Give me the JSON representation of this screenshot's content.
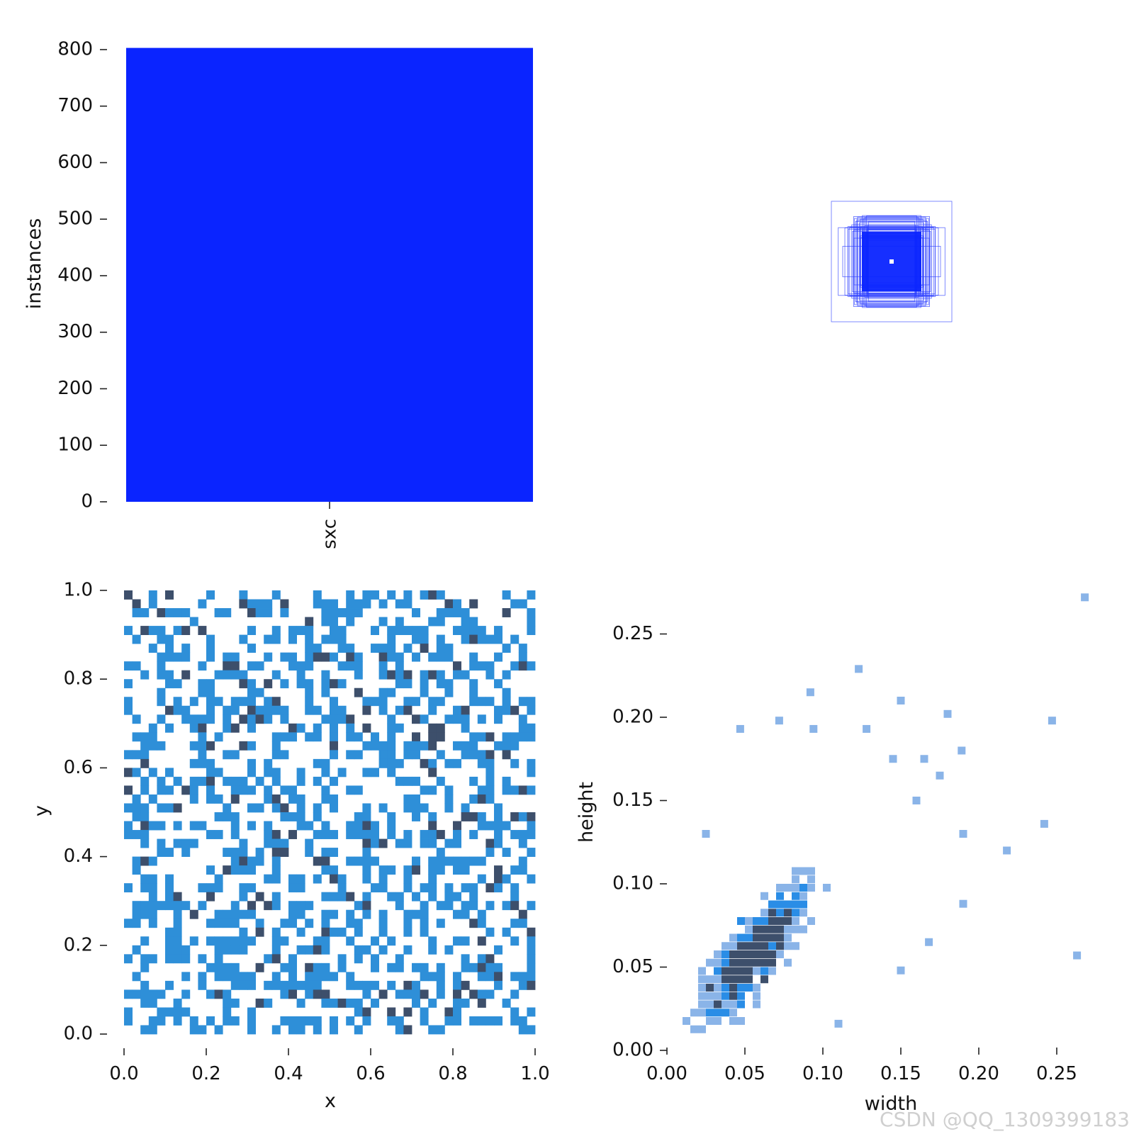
{
  "colors": {
    "bar": "#0a24ff",
    "box_stroke": "#2a3cff",
    "hist_light": "#2e8fd8",
    "hist_dark": "#3d4f6b",
    "wh_light": "#8ab4e8",
    "wh_mid": "#2a8de6",
    "wh_dark": "#3d4f6b"
  },
  "watermark": "CSDN @QQ_1309399183",
  "chart_data": [
    {
      "id": "class-count",
      "type": "bar",
      "categories": [
        "sxc"
      ],
      "values": [
        803
      ],
      "ylabel": "instances",
      "xlabel": "",
      "ylim": [
        0,
        810
      ],
      "yticks": [
        "0",
        "100",
        "200",
        "300",
        "400",
        "500",
        "600",
        "700",
        "800"
      ]
    },
    {
      "id": "box-overlay",
      "type": "other",
      "description_values": {
        "boxes": 40
      }
    },
    {
      "id": "xy-hist",
      "type": "heatmap",
      "xlabel": "x",
      "ylabel": "y",
      "xlim": [
        0,
        1
      ],
      "ylim": [
        0,
        1
      ],
      "xticks": [
        "0.0",
        "0.2",
        "0.4",
        "0.6",
        "0.8",
        "1.0"
      ],
      "yticks": [
        "0.0",
        "0.2",
        "0.4",
        "0.6",
        "0.8",
        "1.0"
      ],
      "bins": 50,
      "fill_density": 0.42,
      "dark_fraction": 0.13
    },
    {
      "id": "wh-hist",
      "type": "heatmap",
      "xlabel": "width",
      "ylabel": "height",
      "xlim": [
        0,
        0.27
      ],
      "ylim": [
        0,
        0.27
      ],
      "xticks": [
        "0.00",
        "0.05",
        "0.10",
        "0.15",
        "0.20",
        "0.25"
      ],
      "yticks": [
        "0.00",
        "0.05",
        "0.10",
        "0.15",
        "0.20",
        "0.25"
      ],
      "outliers": [
        [
          0.268,
          0.272
        ],
        [
          0.247,
          0.198
        ],
        [
          0.263,
          0.057
        ],
        [
          0.242,
          0.136
        ],
        [
          0.218,
          0.12
        ],
        [
          0.19,
          0.088
        ],
        [
          0.19,
          0.13
        ],
        [
          0.189,
          0.18
        ],
        [
          0.123,
          0.229
        ],
        [
          0.092,
          0.215
        ],
        [
          0.15,
          0.21
        ],
        [
          0.047,
          0.193
        ],
        [
          0.072,
          0.198
        ],
        [
          0.094,
          0.193
        ],
        [
          0.128,
          0.193
        ],
        [
          0.18,
          0.202
        ],
        [
          0.025,
          0.13
        ],
        [
          0.16,
          0.15
        ],
        [
          0.168,
          0.065
        ],
        [
          0.15,
          0.048
        ],
        [
          0.11,
          0.016
        ],
        [
          0.165,
          0.175
        ],
        [
          0.175,
          0.165
        ],
        [
          0.145,
          0.175
        ]
      ]
    }
  ]
}
